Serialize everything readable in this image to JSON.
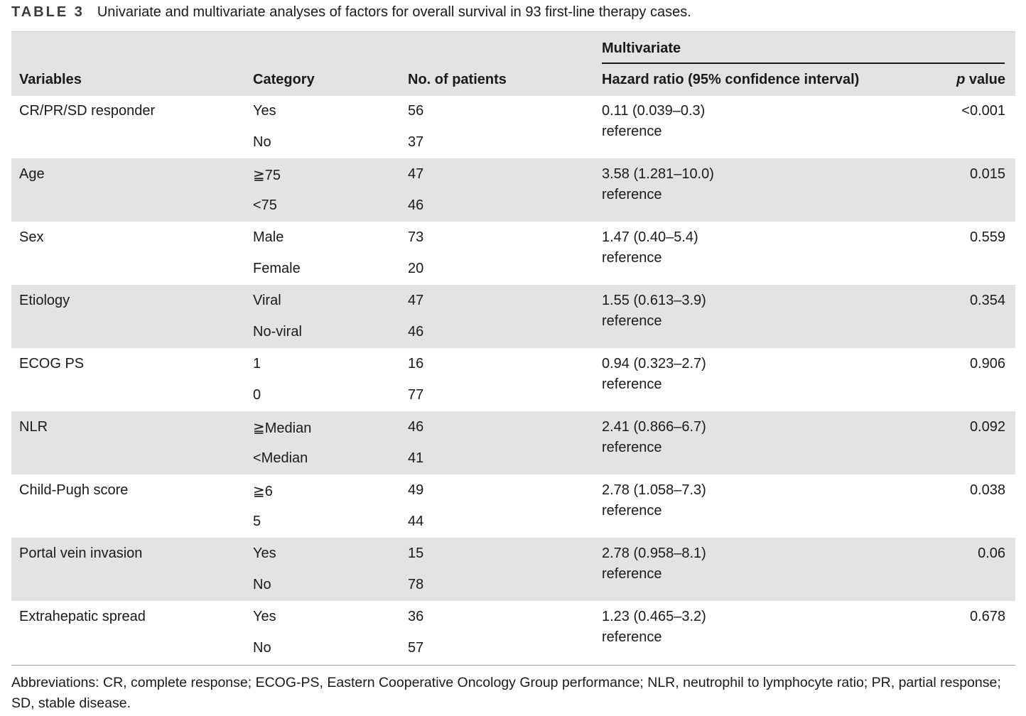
{
  "caption": {
    "label": "TABLE 3",
    "text": "Univariate and multivariate analyses of factors for overall survival in 93 first-line therapy cases."
  },
  "header": {
    "multivariate": "Multivariate",
    "variables": "Variables",
    "category": "Category",
    "patients": "No. of patients",
    "hazard": "Hazard ratio (95% confidence interval)",
    "p_italic": "p",
    "p_rest": " value"
  },
  "rows": [
    {
      "variable": "CR/PR/SD responder",
      "cat1": "Yes",
      "n1": "56",
      "cat2": "No",
      "n2": "37",
      "hr": "0.11 (0.039–0.3)",
      "ref": "reference",
      "p": "<0.001"
    },
    {
      "variable": "Age",
      "cat1": "≧75",
      "n1": "47",
      "cat2": "<75",
      "n2": "46",
      "hr": "3.58 (1.281–10.0)",
      "ref": "reference",
      "p": "0.015"
    },
    {
      "variable": "Sex",
      "cat1": "Male",
      "n1": "73",
      "cat2": "Female",
      "n2": "20",
      "hr": "1.47 (0.40–5.4)",
      "ref": "reference",
      "p": "0.559"
    },
    {
      "variable": "Etiology",
      "cat1": "Viral",
      "n1": "47",
      "cat2": "No-viral",
      "n2": "46",
      "hr": "1.55 (0.613–3.9)",
      "ref": "reference",
      "p": "0.354"
    },
    {
      "variable": "ECOG PS",
      "cat1": "1",
      "n1": "16",
      "cat2": "0",
      "n2": "77",
      "hr": "0.94 (0.323–2.7)",
      "ref": "reference",
      "p": "0.906"
    },
    {
      "variable": "NLR",
      "cat1": "≧Median",
      "n1": "46",
      "cat2": "<Median",
      "n2": "41",
      "hr": "2.41 (0.866–6.7)",
      "ref": "reference",
      "p": "0.092"
    },
    {
      "variable": "Child-Pugh score",
      "cat1": "≧6",
      "n1": "49",
      "cat2": "5",
      "n2": "44",
      "hr": "2.78 (1.058–7.3)",
      "ref": "reference",
      "p": "0.038"
    },
    {
      "variable": "Portal vein invasion",
      "cat1": "Yes",
      "n1": "15",
      "cat2": "No",
      "n2": "78",
      "hr": "2.78 (0.958–8.1)",
      "ref": "reference",
      "p": "0.06"
    },
    {
      "variable": "Extrahepatic spread",
      "cat1": "Yes",
      "n1": "36",
      "cat2": "No",
      "n2": "57",
      "hr": "1.23 (0.465–3.2)",
      "ref": "reference",
      "p": "0.678"
    }
  ],
  "footnote": "Abbreviations: CR, complete response; ECOG-PS, Eastern Cooperative Oncology Group performance; NLR, neutrophil to lymphocyte ratio; PR, partial response; SD, stable disease."
}
